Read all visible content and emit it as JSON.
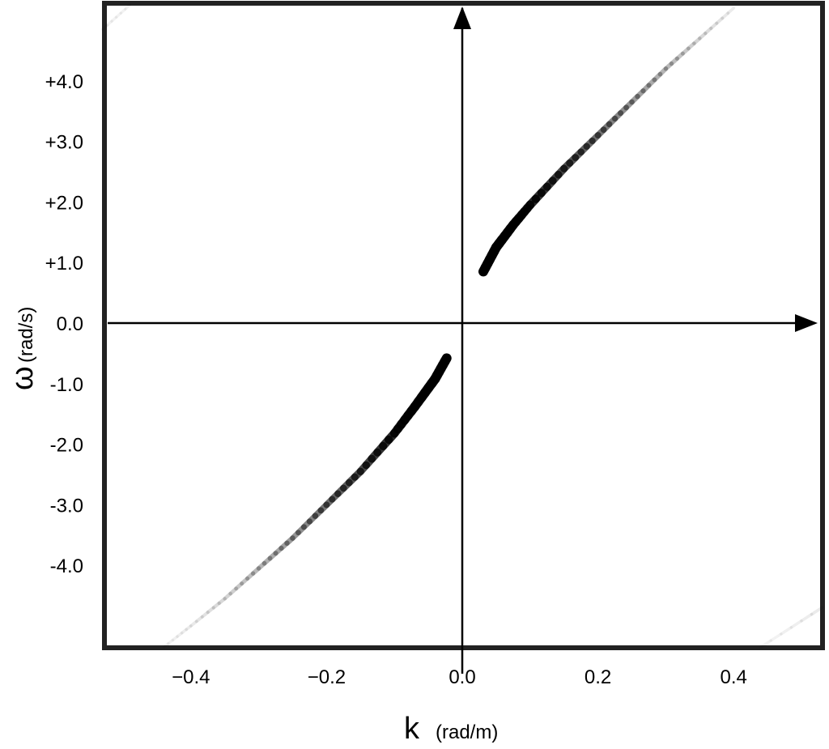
{
  "chart_data": {
    "type": "line",
    "title": "",
    "xlabel": "k",
    "xlabel_unit": "(rad/m)",
    "ylabel": "ω",
    "ylabel_unit": "(rad/s)",
    "xlim": [
      -0.55,
      0.55
    ],
    "ylim": [
      -5.35,
      5.25
    ],
    "x_ticks": [
      -0.4,
      -0.2,
      0.0,
      0.2,
      0.4
    ],
    "x_tick_labels": [
      "−0.4",
      "−0.2",
      "0.0",
      "0.2",
      "0.4"
    ],
    "y_ticks": [
      4,
      3,
      2,
      1,
      0,
      -1,
      -2,
      -3,
      -4
    ],
    "y_tick_labels": [
      "+4.0",
      "+3.0",
      "+2.0",
      "+1.0",
      "0.0",
      "-1.0",
      "-2.0",
      "-3.0",
      "-4.0"
    ],
    "grid": false,
    "legend": "none",
    "series": [
      {
        "points": [
          {
            "x": 0.031,
            "y": 0.85,
            "intensity": 1.0
          },
          {
            "x": 0.05,
            "y": 1.25,
            "intensity": 1.0
          },
          {
            "x": 0.075,
            "y": 1.62,
            "intensity": 0.95
          },
          {
            "x": 0.1,
            "y": 1.95,
            "intensity": 0.85
          },
          {
            "x": 0.15,
            "y": 2.55,
            "intensity": 0.7
          },
          {
            "x": 0.2,
            "y": 3.1,
            "intensity": 0.55
          },
          {
            "x": 0.25,
            "y": 3.65,
            "intensity": 0.4
          },
          {
            "x": 0.3,
            "y": 4.2,
            "intensity": 0.28
          },
          {
            "x": 0.35,
            "y": 4.7,
            "intensity": 0.16
          },
          {
            "x": 0.4,
            "y": 5.2,
            "intensity": 0.07
          }
        ]
      },
      {
        "points": [
          {
            "x": -0.023,
            "y": -0.58,
            "intensity": 1.0
          },
          {
            "x": -0.04,
            "y": -0.92,
            "intensity": 1.0
          },
          {
            "x": -0.07,
            "y": -1.38,
            "intensity": 0.95
          },
          {
            "x": -0.1,
            "y": -1.82,
            "intensity": 0.85
          },
          {
            "x": -0.15,
            "y": -2.45,
            "intensity": 0.7
          },
          {
            "x": -0.2,
            "y": -3.0,
            "intensity": 0.55
          },
          {
            "x": -0.25,
            "y": -3.55,
            "intensity": 0.4
          },
          {
            "x": -0.3,
            "y": -4.05,
            "intensity": 0.28
          },
          {
            "x": -0.35,
            "y": -4.55,
            "intensity": 0.16
          },
          {
            "x": -0.4,
            "y": -5.0,
            "intensity": 0.08
          },
          {
            "x": -0.44,
            "y": -5.35,
            "intensity": 0.04
          }
        ]
      },
      {
        "points": [
          {
            "x": -0.53,
            "y": 4.85,
            "intensity": 0.06
          },
          {
            "x": -0.49,
            "y": 5.25,
            "intensity": 0.03
          }
        ]
      },
      {
        "points": [
          {
            "x": 0.44,
            "y": -5.35,
            "intensity": 0.04
          },
          {
            "x": 0.53,
            "y": -4.7,
            "intensity": 0.08
          }
        ]
      }
    ],
    "colors": {
      "ink": "#000000",
      "frame": "#222222",
      "background": "#ffffff"
    }
  }
}
